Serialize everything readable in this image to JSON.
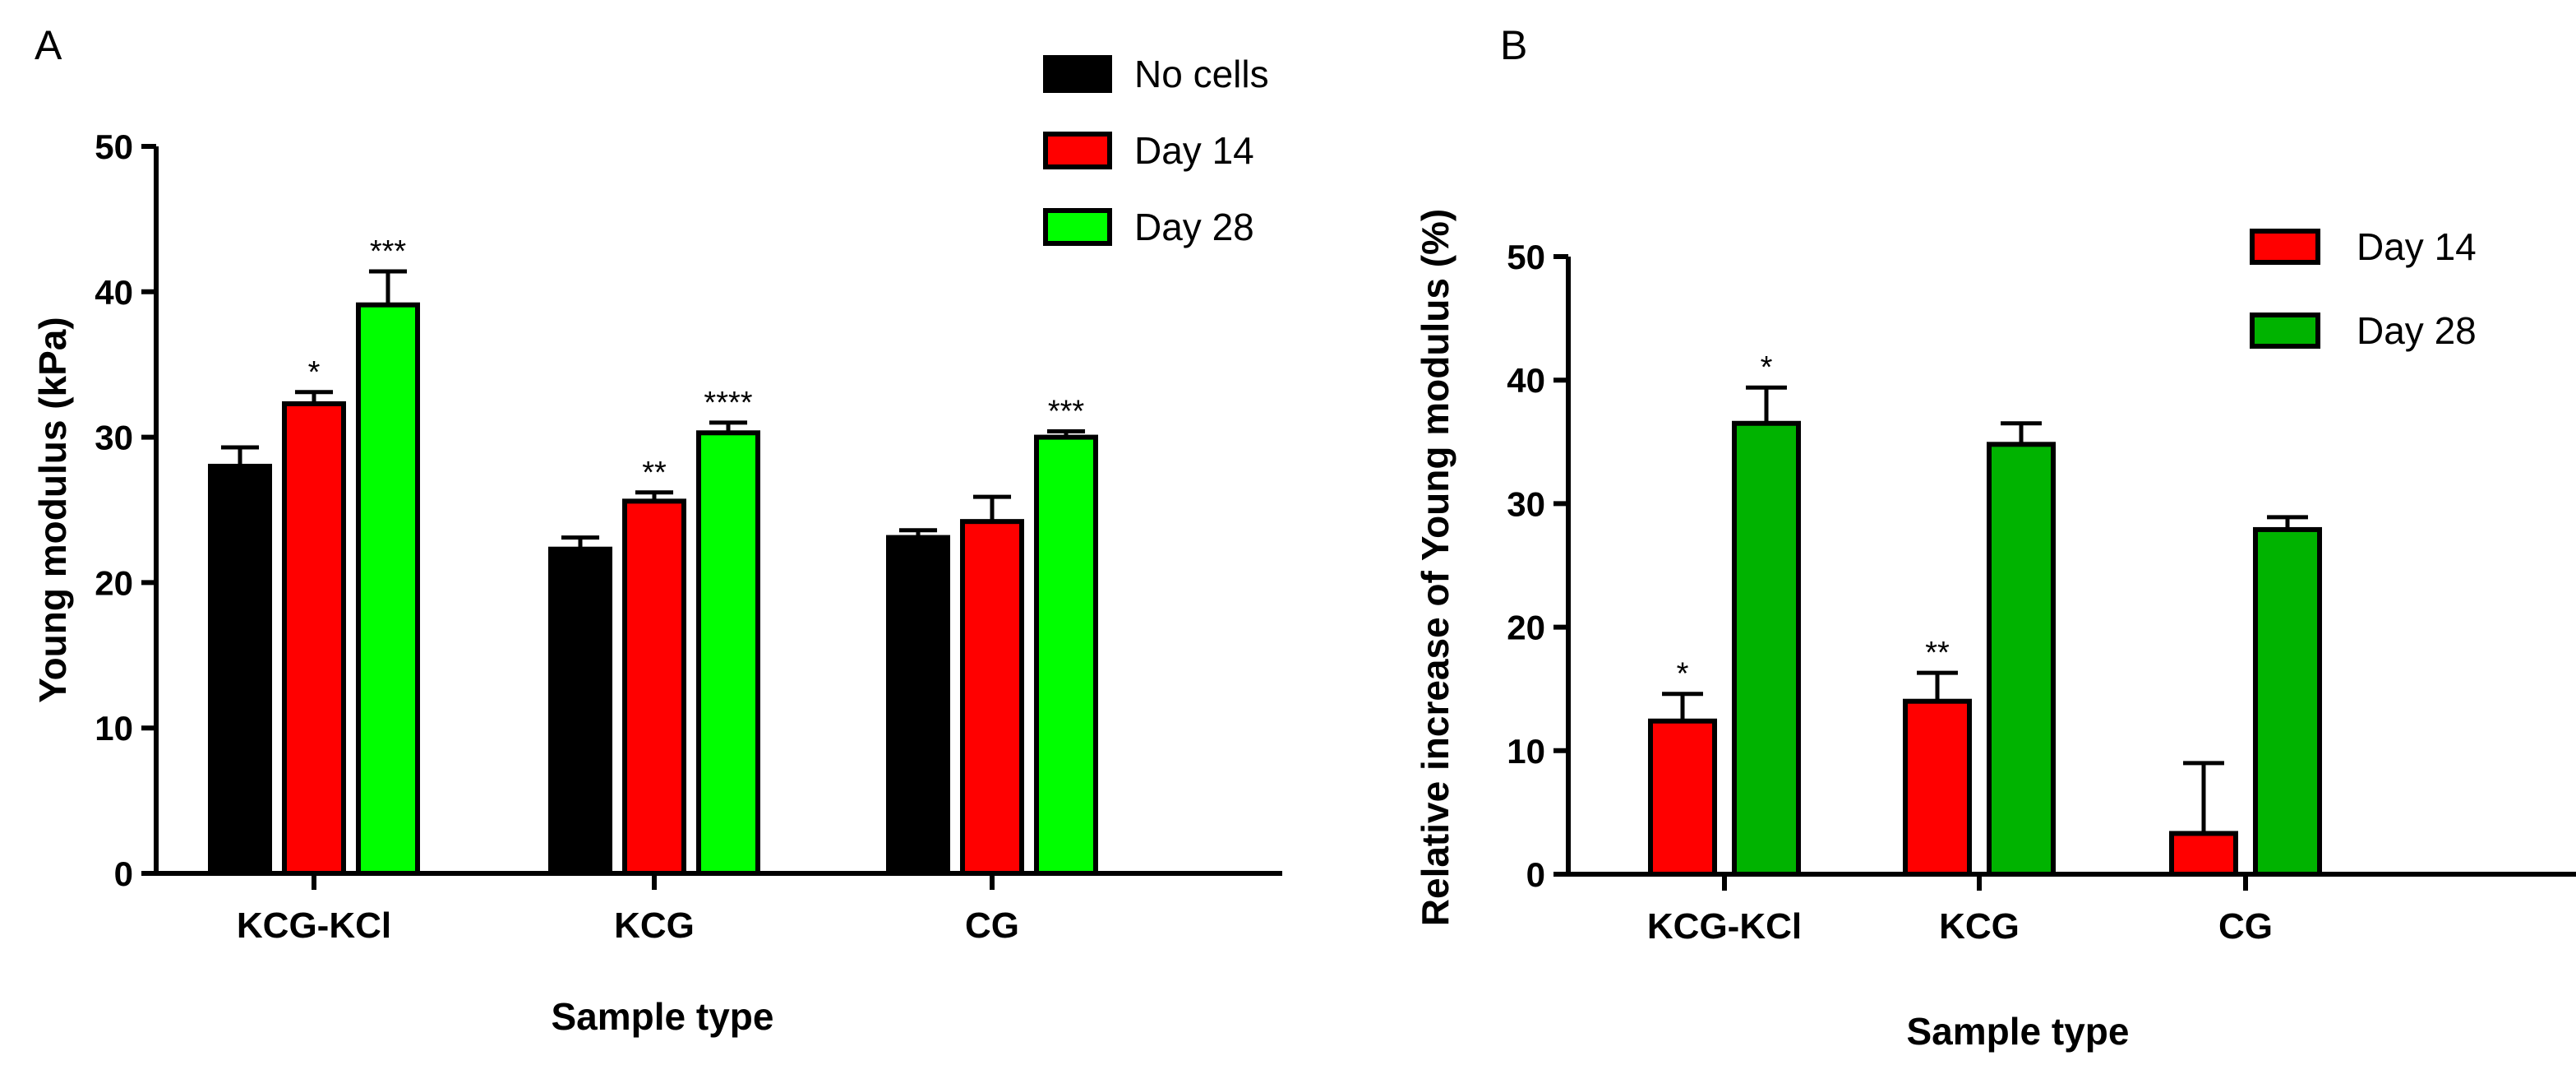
{
  "colors": {
    "no_cells": "#000000",
    "day14": "#ff0000",
    "day28_a": "#00ff00",
    "day28_b": "#00b300",
    "axis": "#000000"
  },
  "chart_data": [
    {
      "type": "bar",
      "panel_label": "A",
      "xlabel": "Sample type",
      "ylabel": "Young modulus (kPa)",
      "ylim": [
        0,
        50
      ],
      "yticks": [
        "0",
        "10",
        "20",
        "30",
        "40",
        "50"
      ],
      "categories": [
        "KCG-KCl",
        "KCG",
        "CG"
      ],
      "legend_position": "top-right",
      "series": [
        {
          "name": "No cells",
          "values": [
            28.0,
            22.3,
            23.1
          ],
          "errors": [
            1.3,
            0.8,
            0.5
          ],
          "significance": [
            "",
            "",
            ""
          ]
        },
        {
          "name": "Day 14",
          "values": [
            32.3,
            25.6,
            24.2
          ],
          "errors": [
            0.8,
            0.6,
            1.7
          ],
          "significance": [
            "*",
            "**",
            ""
          ]
        },
        {
          "name": "Day 28",
          "values": [
            39.1,
            30.3,
            30.0
          ],
          "errors": [
            2.3,
            0.7,
            0.4
          ],
          "significance": [
            "***",
            "****",
            "***"
          ]
        }
      ]
    },
    {
      "type": "bar",
      "panel_label": "B",
      "xlabel": "Sample type",
      "ylabel": "Relative increase of Young modulus (%)",
      "ylim": [
        0,
        50
      ],
      "yticks": [
        "0",
        "10",
        "20",
        "30",
        "40",
        "50"
      ],
      "categories": [
        "KCG-KCl",
        "KCG",
        "CG"
      ],
      "legend_position": "top-right",
      "series": [
        {
          "name": "Day 14",
          "values": [
            12.4,
            14.0,
            3.3
          ],
          "errors": [
            2.2,
            2.3,
            5.7
          ],
          "significance": [
            "*",
            "**",
            ""
          ]
        },
        {
          "name": "Day 28",
          "values": [
            36.5,
            34.8,
            27.9
          ],
          "errors": [
            2.9,
            1.7,
            1.0
          ],
          "significance": [
            "*",
            "",
            ""
          ]
        }
      ]
    }
  ]
}
